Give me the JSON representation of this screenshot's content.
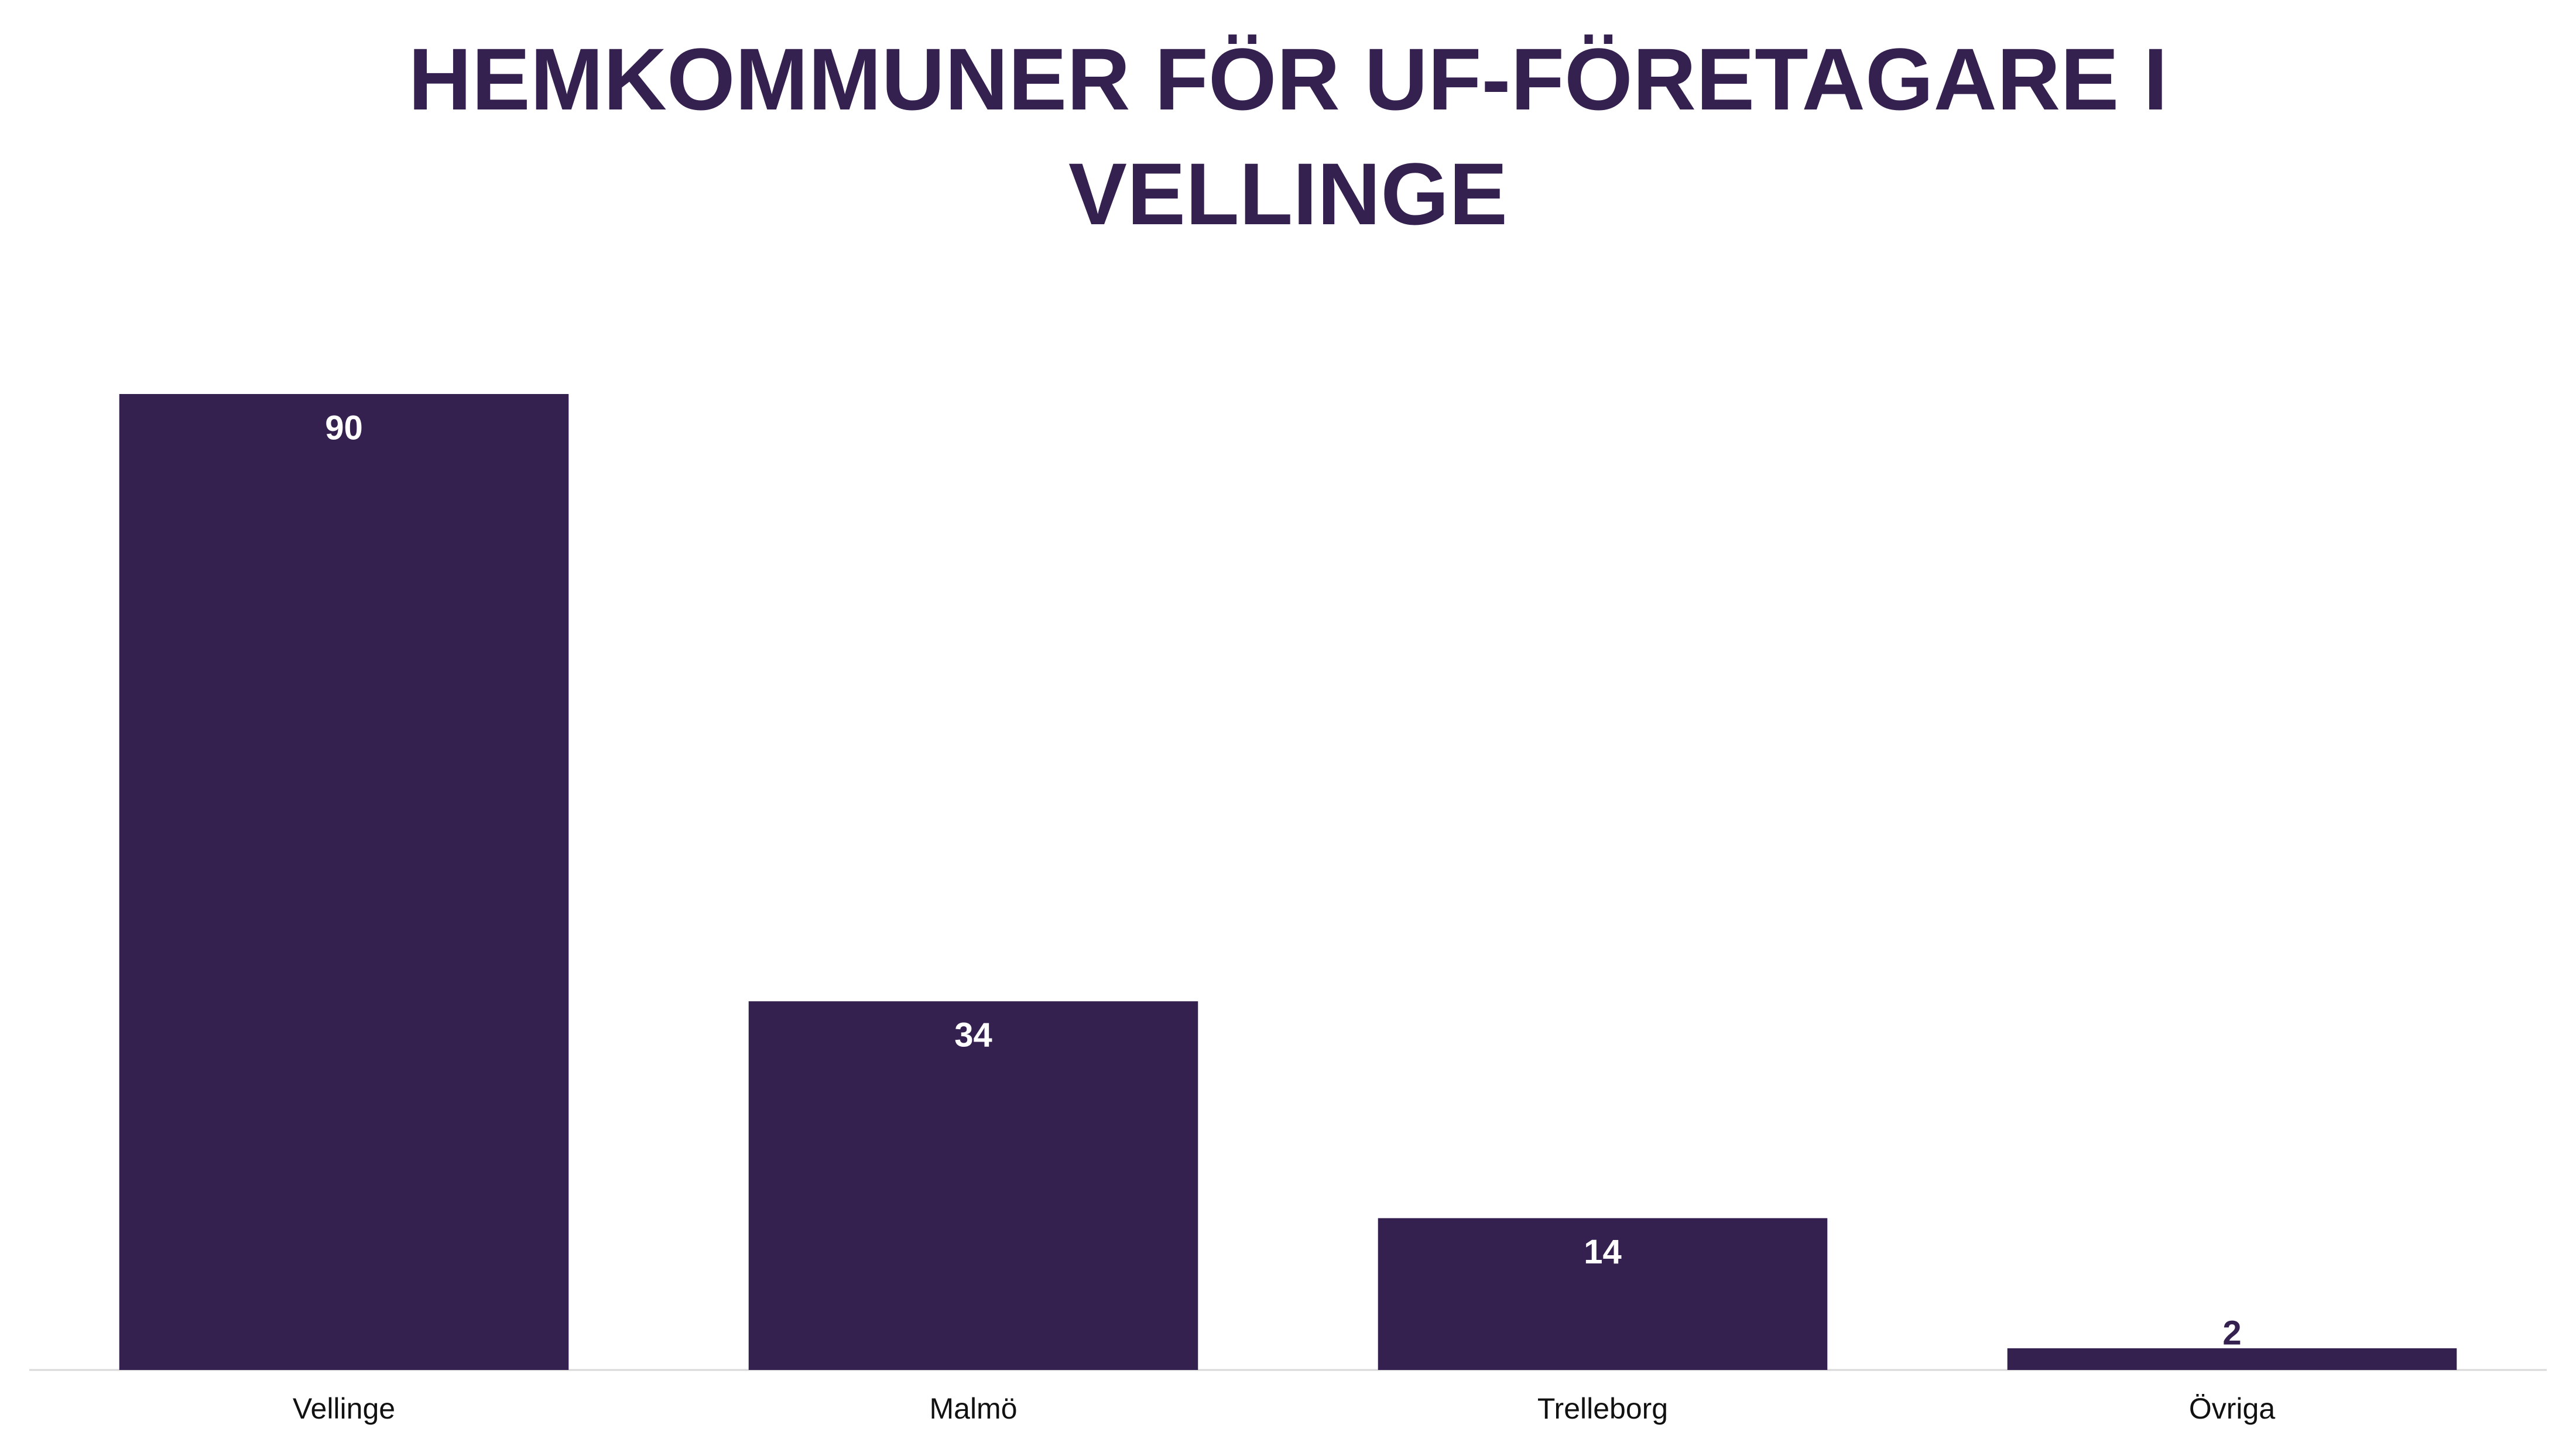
{
  "chart_data": {
    "type": "bar",
    "title": "HEMKOMMUNER FÖR UF-FÖRETAGARE I VELLINGE",
    "categories": [
      "Vellinge",
      "Malmö",
      "Trelleborg",
      "Övriga"
    ],
    "values": [
      90,
      34,
      14,
      2
    ],
    "color": "#34214f",
    "ylim": [
      0,
      90
    ]
  }
}
